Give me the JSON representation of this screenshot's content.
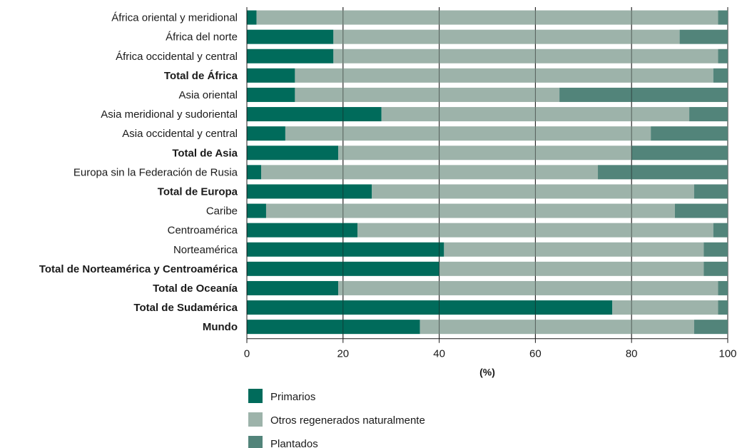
{
  "chart_data": {
    "type": "bar",
    "orientation": "horizontal",
    "stacked": true,
    "categories": [
      "África oriental y meridional",
      "África del norte",
      "África occidental y central",
      "Total de África",
      "Asia oriental",
      "Asia meridional y sudoriental",
      "Asia occidental y central",
      "Total de Asia",
      "Europa sin la Federación de Rusia",
      "Total de Europa",
      "Caribe",
      "Centroamérica",
      "Norteamérica",
      "Total de Norteamérica y Centroamérica",
      "Total de Oceanía",
      "Total de Sudamérica",
      "Mundo"
    ],
    "bold_categories": [
      "Total de África",
      "Total de Asia",
      "Total de Europa",
      "Total de Norteamérica y Centroamérica",
      "Total de Oceanía",
      "Total de Sudamérica",
      "Mundo"
    ],
    "series": [
      {
        "name": "Primarios",
        "color": "#006b5b",
        "values": [
          2,
          18,
          18,
          10,
          10,
          28,
          8,
          19,
          3,
          26,
          4,
          23,
          41,
          40,
          19,
          76,
          36
        ]
      },
      {
        "name": "Otros regenerados naturalmente",
        "color": "#9db3aa",
        "values": [
          96,
          72,
          80,
          87,
          55,
          64,
          76,
          61,
          70,
          67,
          85,
          74,
          54,
          55,
          79,
          22,
          57
        ]
      },
      {
        "name": "Plantados",
        "color": "#52847a",
        "values": [
          2,
          10,
          2,
          3,
          35,
          8,
          16,
          20,
          27,
          7,
          11,
          3,
          5,
          5,
          2,
          2,
          7
        ]
      }
    ],
    "xlabel": "(%)",
    "xlim": [
      0,
      100
    ],
    "xticks": [
      0,
      20,
      40,
      60,
      80,
      100
    ],
    "grid": "vertical",
    "legend_position": "bottom"
  }
}
